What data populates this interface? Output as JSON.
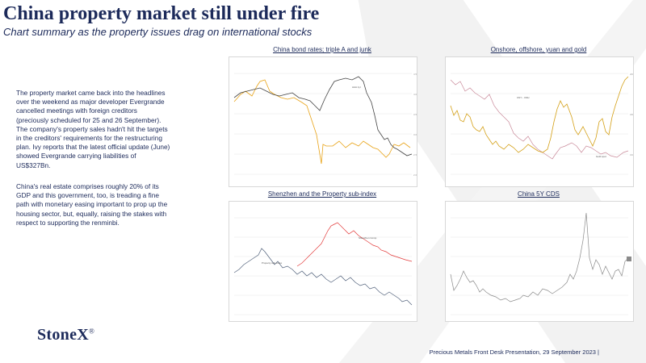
{
  "title": "China property market still under fire",
  "subtitle": "Chart summary as the property issues drag on international stocks",
  "paragraphs": [
    "The property market came back into the headlines over the weekend as major developer Evergrande cancelled meetings with foreign creditors (preciously scheduled for 25 and 26 September).  The company's property sales hadn't hit the targets in the creditors' requirements for the restructuring plan.  Ivy reports that the latest official update (June) showed Evergrande carrying liabilities of US$327Bn.",
    "China's real estate comprises roughly 20% of its GDP and this government, too, is treading a fine path with monetary easing important to prop up the housing sector, but, equally, raising the stakes with respect to supporting the renminbi."
  ],
  "charts": [
    {
      "title": "China bond rates; triple A and junk"
    },
    {
      "title": "Onshore, offshore, yuan and gold"
    },
    {
      "title": "Shenzhen and the Property sub-index"
    },
    {
      "title": "China 5Y CDS"
    }
  ],
  "logo": {
    "name": "StoneX",
    "mark": "®"
  },
  "footer": "Precious Metals Front Desk Presentation, 29 September 2023 |",
  "colors": {
    "navy": "#1c2a5a",
    "gold": "#e8a317",
    "dark_series": "#444444",
    "red": "#e23a3a",
    "steel": "#50607a",
    "pink": "#c98a9a",
    "grey_series": "#8a8a8a"
  }
}
